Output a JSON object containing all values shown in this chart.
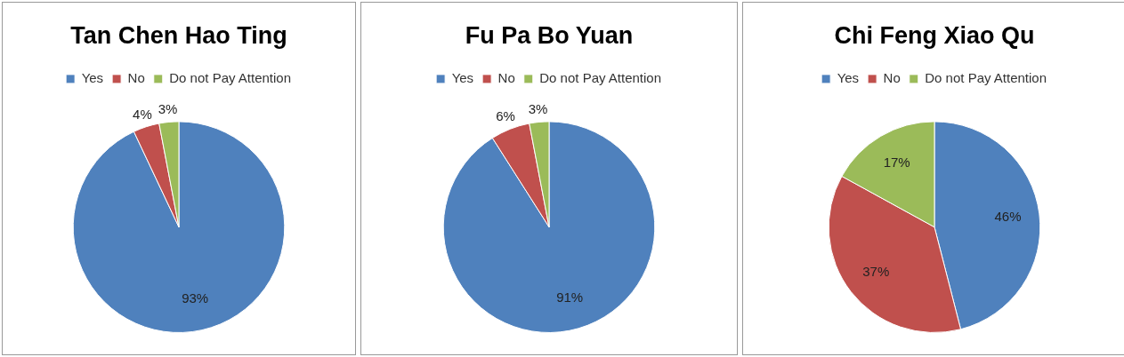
{
  "chart_data": [
    {
      "type": "pie",
      "title": "Tan Chen Hao Ting",
      "categories": [
        "Yes",
        "No",
        "Do not Pay Attention"
      ],
      "values": [
        93,
        4,
        3
      ],
      "colors": [
        "#4f81bd",
        "#c0504d",
        "#9bbb59"
      ],
      "value_labels": [
        "93%",
        "4%",
        "3%"
      ],
      "legend": "top"
    },
    {
      "type": "pie",
      "title": "Fu Pa Bo Yuan",
      "categories": [
        "Yes",
        "No",
        "Do not Pay Attention"
      ],
      "values": [
        91,
        6,
        3
      ],
      "colors": [
        "#4f81bd",
        "#c0504d",
        "#9bbb59"
      ],
      "value_labels": [
        "91%",
        "6%",
        "3%"
      ],
      "legend": "top"
    },
    {
      "type": "pie",
      "title": "Chi Feng Xiao Qu",
      "categories": [
        "Yes",
        "No",
        "Do not Pay Attention"
      ],
      "values": [
        46,
        37,
        17
      ],
      "colors": [
        "#4f81bd",
        "#c0504d",
        "#9bbb59"
      ],
      "value_labels": [
        "46%",
        "37%",
        "17%"
      ],
      "legend": "top"
    }
  ]
}
